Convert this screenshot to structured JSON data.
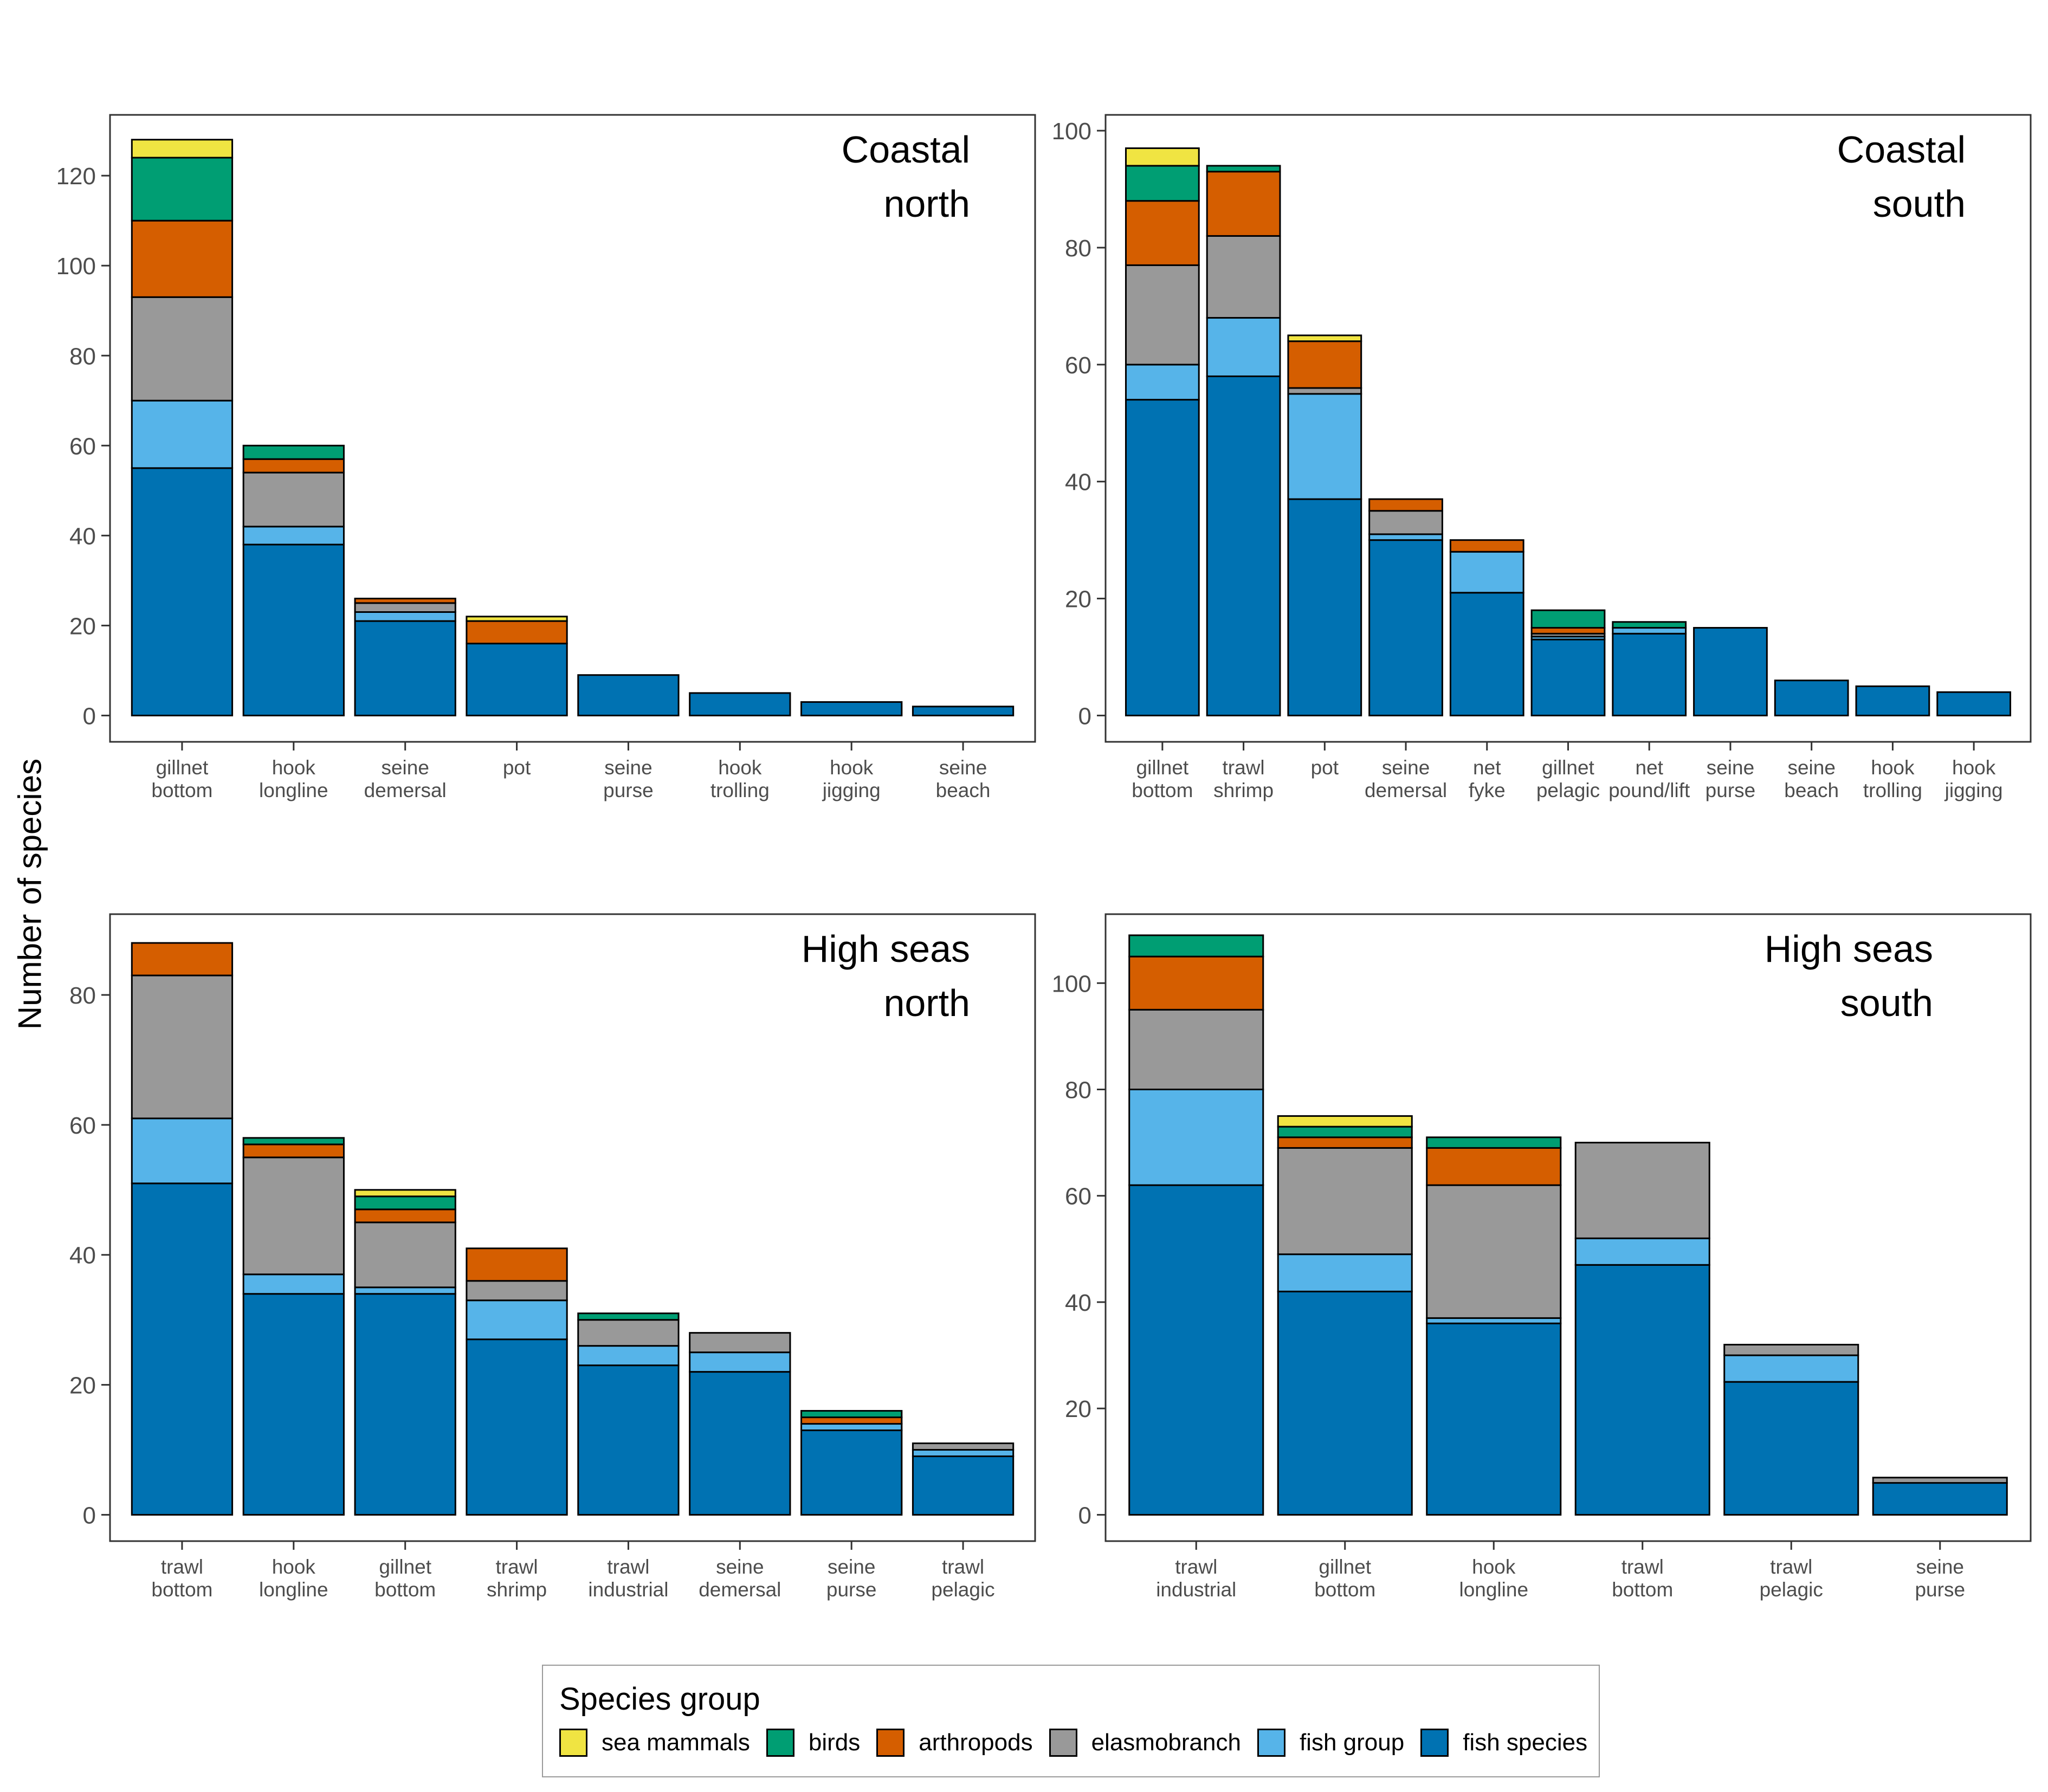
{
  "figure": {
    "y_axis_label": "Number of species",
    "legend": {
      "title": "Species group",
      "items": [
        {
          "label": "sea mammals",
          "color": "#F0E442"
        },
        {
          "label": "birds",
          "color": "#009E73"
        },
        {
          "label": "arthropods",
          "color": "#D55E00"
        },
        {
          "label": "elasmobranch",
          "color": "#999999"
        },
        {
          "label": "fish group",
          "color": "#56B4E9"
        },
        {
          "label": "fish species",
          "color": "#0072B2"
        }
      ]
    }
  },
  "chart_data": [
    {
      "type": "bar",
      "stacked": true,
      "title": [
        "Coastal",
        "north"
      ],
      "categories": [
        [
          "gillnet",
          "bottom"
        ],
        [
          "hook",
          "longline"
        ],
        [
          "seine",
          "demersal"
        ],
        [
          "pot"
        ],
        [
          "seine",
          "purse"
        ],
        [
          "hook",
          "trolling"
        ],
        [
          "hook",
          "jigging"
        ],
        [
          "seine",
          "beach"
        ]
      ],
      "ylim": [
        0,
        130
      ],
      "yticks": [
        0,
        20,
        40,
        60,
        80,
        100,
        120
      ],
      "series": [
        {
          "name": "fish species",
          "values": [
            55,
            38,
            21,
            16,
            9,
            5,
            3,
            2
          ]
        },
        {
          "name": "fish group",
          "values": [
            15,
            4,
            2,
            0,
            0,
            0,
            0,
            0
          ]
        },
        {
          "name": "elasmobranch",
          "values": [
            23,
            12,
            2,
            0,
            0,
            0,
            0,
            0
          ]
        },
        {
          "name": "arthropods",
          "values": [
            17,
            3,
            1,
            5,
            0,
            0,
            0,
            0
          ]
        },
        {
          "name": "birds",
          "values": [
            14,
            3,
            0,
            0,
            0,
            0,
            0,
            0
          ]
        },
        {
          "name": "sea mammals",
          "values": [
            4,
            0,
            0,
            1,
            0,
            0,
            0,
            0
          ]
        }
      ]
    },
    {
      "type": "bar",
      "stacked": true,
      "title": [
        "Coastal",
        "south"
      ],
      "categories": [
        [
          "gillnet",
          "bottom"
        ],
        [
          "trawl",
          "shrimp"
        ],
        [
          "pot"
        ],
        [
          "seine",
          "demersal"
        ],
        [
          "net",
          "fyke"
        ],
        [
          "gillnet",
          "pelagic"
        ],
        [
          "net",
          "pound/lift"
        ],
        [
          "seine",
          "purse"
        ],
        [
          "seine",
          "beach"
        ],
        [
          "hook",
          "trolling"
        ],
        [
          "hook",
          "jigging"
        ]
      ],
      "ylim": [
        0,
        100
      ],
      "yticks": [
        0,
        20,
        40,
        60,
        80,
        100
      ],
      "series": [
        {
          "name": "fish species",
          "values": [
            54,
            58,
            37,
            30,
            21,
            13,
            14,
            15,
            6,
            5,
            4
          ]
        },
        {
          "name": "fish group",
          "values": [
            6,
            10,
            18,
            1,
            7,
            0.5,
            1,
            0,
            0,
            0,
            0
          ]
        },
        {
          "name": "elasmobranch",
          "values": [
            17,
            14,
            1,
            4,
            0,
            0.5,
            0,
            0,
            0,
            0,
            0
          ]
        },
        {
          "name": "arthropods",
          "values": [
            11,
            11,
            8,
            2,
            2,
            1,
            0,
            0,
            0,
            0,
            0
          ]
        },
        {
          "name": "birds",
          "values": [
            6,
            1,
            0,
            0,
            0,
            3,
            1,
            0,
            0,
            0,
            0
          ]
        },
        {
          "name": "sea mammals",
          "values": [
            3,
            0,
            1,
            0,
            0,
            0,
            0,
            0,
            0,
            0,
            0
          ]
        }
      ]
    },
    {
      "type": "bar",
      "stacked": true,
      "title": [
        "High seas",
        "north"
      ],
      "categories": [
        [
          "trawl",
          "bottom"
        ],
        [
          "hook",
          "longline"
        ],
        [
          "gillnet",
          "bottom"
        ],
        [
          "trawl",
          "shrimp"
        ],
        [
          "trawl",
          "industrial"
        ],
        [
          "seine",
          "demersal"
        ],
        [
          "seine",
          "purse"
        ],
        [
          "trawl",
          "pelagic"
        ]
      ],
      "ylim": [
        0,
        90
      ],
      "yticks": [
        0,
        20,
        40,
        60,
        80
      ],
      "series": [
        {
          "name": "fish species",
          "values": [
            51,
            34,
            34,
            27,
            23,
            22,
            13,
            9
          ]
        },
        {
          "name": "fish group",
          "values": [
            10,
            3,
            1,
            6,
            3,
            3,
            1,
            1
          ]
        },
        {
          "name": "elasmobranch",
          "values": [
            22,
            18,
            10,
            3,
            4,
            3,
            0,
            1
          ]
        },
        {
          "name": "arthropods",
          "values": [
            5,
            2,
            2,
            5,
            0,
            0,
            1,
            0
          ]
        },
        {
          "name": "birds",
          "values": [
            0,
            1,
            2,
            0,
            1,
            0,
            1,
            0
          ]
        },
        {
          "name": "sea mammals",
          "values": [
            0,
            0,
            1,
            0,
            0,
            0,
            0,
            0
          ]
        }
      ]
    },
    {
      "type": "bar",
      "stacked": true,
      "title": [
        "High seas",
        "south"
      ],
      "categories": [
        [
          "trawl",
          "industrial"
        ],
        [
          "gillnet",
          "bottom"
        ],
        [
          "hook",
          "longline"
        ],
        [
          "trawl",
          "bottom"
        ],
        [
          "trawl",
          "pelagic"
        ],
        [
          "seine",
          "purse"
        ]
      ],
      "ylim": [
        0,
        110
      ],
      "yticks": [
        0,
        20,
        40,
        60,
        80,
        100
      ],
      "series": [
        {
          "name": "fish species",
          "values": [
            62,
            42,
            36,
            47,
            25,
            6
          ]
        },
        {
          "name": "fish group",
          "values": [
            18,
            7,
            1,
            5,
            5,
            0
          ]
        },
        {
          "name": "elasmobranch",
          "values": [
            15,
            20,
            25,
            18,
            2,
            1
          ]
        },
        {
          "name": "arthropods",
          "values": [
            10,
            2,
            7,
            0,
            0,
            0
          ]
        },
        {
          "name": "birds",
          "values": [
            4,
            2,
            2,
            0,
            0,
            0
          ]
        },
        {
          "name": "sea mammals",
          "values": [
            0,
            2,
            0,
            0,
            0,
            0
          ]
        }
      ]
    }
  ]
}
